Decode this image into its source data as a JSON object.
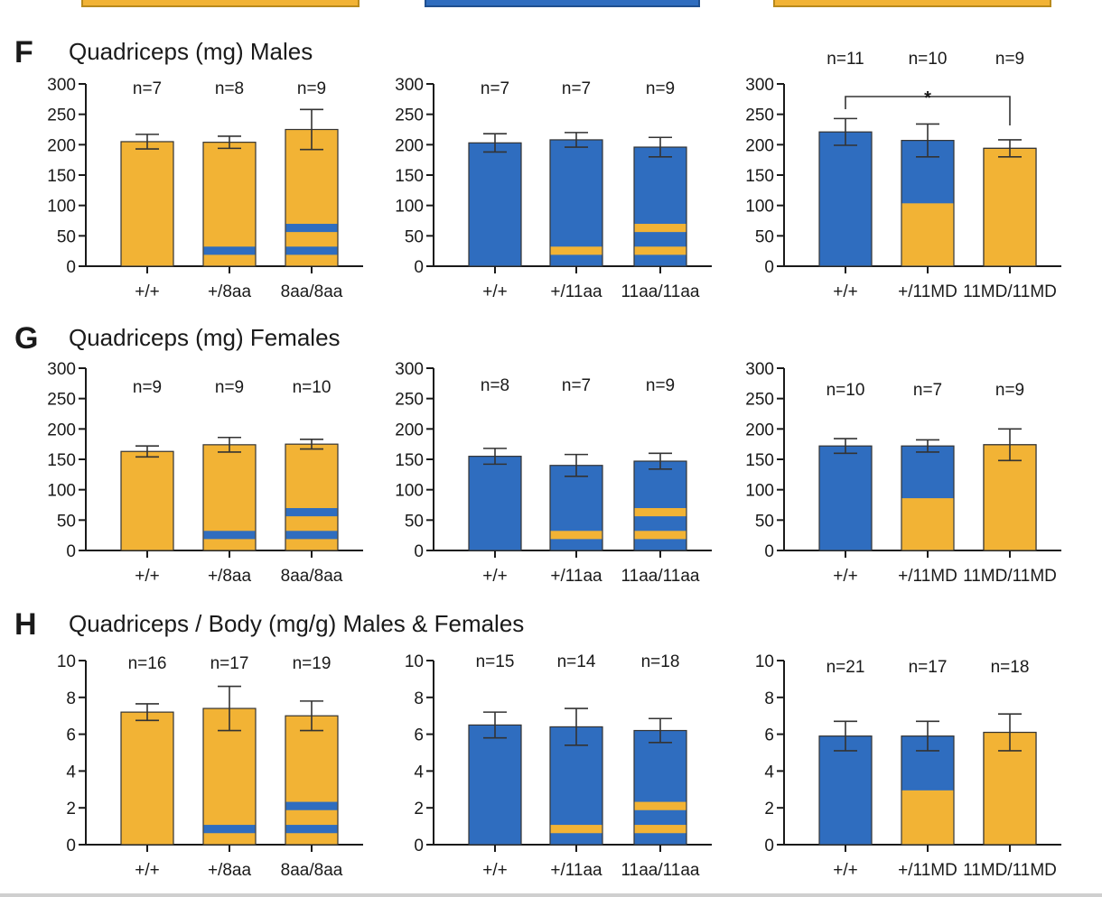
{
  "colors": {
    "orange": "#F2B335",
    "blue": "#2F6DBF",
    "axis": "#1a1a1a",
    "text": "#1a1a1a"
  },
  "chart_data": [
    {
      "panel": "F",
      "title": "Quadriceps (mg) Males",
      "type": "bar",
      "ylim": [
        0,
        300
      ],
      "ticks": [
        0,
        50,
        100,
        150,
        200,
        250,
        300
      ],
      "groups": [
        {
          "base": "orange",
          "band": "blue",
          "categories": [
            "+/+",
            "+/8aa",
            "8aa/8aa"
          ],
          "values": [
            205,
            204,
            225
          ],
          "errors": [
            12,
            10,
            33
          ],
          "n": [
            "n=7",
            "n=8",
            "n=9"
          ],
          "bands": [
            0,
            1,
            2
          ]
        },
        {
          "base": "blue",
          "band": "orange",
          "categories": [
            "+/+",
            "+/11aa",
            "11aa/11aa"
          ],
          "values": [
            203,
            208,
            196
          ],
          "errors": [
            15,
            12,
            16
          ],
          "n": [
            "n=7",
            "n=7",
            "n=9"
          ],
          "bands": [
            0,
            1,
            2
          ]
        },
        {
          "base": "blue",
          "band": "orange",
          "split": [
            0,
            0.5,
            1.0
          ],
          "categories": [
            "+/+",
            "+/11MD",
            "11MD/11MD"
          ],
          "values": [
            221,
            207,
            194
          ],
          "errors": [
            22,
            27,
            14
          ],
          "n": [
            "n=11",
            "n=10",
            "n=9"
          ],
          "sig": {
            "from": 0,
            "to": 2,
            "label": "*"
          }
        }
      ]
    },
    {
      "panel": "G",
      "title": "Quadriceps (mg) Females",
      "type": "bar",
      "ylim": [
        0,
        300
      ],
      "ticks": [
        0,
        50,
        100,
        150,
        200,
        250,
        300
      ],
      "groups": [
        {
          "base": "orange",
          "band": "blue",
          "categories": [
            "+/+",
            "+/8aa",
            "8aa/8aa"
          ],
          "values": [
            163,
            174,
            175
          ],
          "errors": [
            9,
            12,
            8
          ],
          "n": [
            "n=9",
            "n=9",
            "n=10"
          ],
          "bands": [
            0,
            1,
            2
          ]
        },
        {
          "base": "blue",
          "band": "orange",
          "categories": [
            "+/+",
            "+/11aa",
            "11aa/11aa"
          ],
          "values": [
            155,
            140,
            147
          ],
          "errors": [
            13,
            18,
            13
          ],
          "n": [
            "n=8",
            "n=7",
            "n=9"
          ],
          "bands": [
            0,
            1,
            2
          ]
        },
        {
          "base": "blue",
          "band": "orange",
          "split": [
            0,
            0.5,
            1.0
          ],
          "categories": [
            "+/+",
            "+/11MD",
            "11MD/11MD"
          ],
          "values": [
            172,
            172,
            174
          ],
          "errors": [
            12,
            10,
            26
          ],
          "n": [
            "n=10",
            "n=7",
            "n=9"
          ]
        }
      ]
    },
    {
      "panel": "H",
      "title": "Quadriceps / Body (mg/g) Males & Females",
      "type": "bar",
      "ylim": [
        0,
        10
      ],
      "ticks": [
        0,
        2,
        4,
        6,
        8,
        10
      ],
      "groups": [
        {
          "base": "orange",
          "band": "blue",
          "categories": [
            "+/+",
            "+/8aa",
            "8aa/8aa"
          ],
          "values": [
            7.2,
            7.4,
            7.0
          ],
          "errors": [
            0.45,
            1.2,
            0.8
          ],
          "n": [
            "n=16",
            "n=17",
            "n=19"
          ],
          "bands": [
            0,
            1,
            2
          ]
        },
        {
          "base": "blue",
          "band": "orange",
          "categories": [
            "+/+",
            "+/11aa",
            "11aa/11aa"
          ],
          "values": [
            6.5,
            6.4,
            6.2
          ],
          "errors": [
            0.7,
            1.0,
            0.65
          ],
          "n": [
            "n=15",
            "n=14",
            "n=18"
          ],
          "bands": [
            0,
            1,
            2
          ]
        },
        {
          "base": "blue",
          "band": "orange",
          "split": [
            0,
            0.5,
            1.0
          ],
          "categories": [
            "+/+",
            "+/11MD",
            "11MD/11MD"
          ],
          "values": [
            5.9,
            5.9,
            6.1
          ],
          "errors": [
            0.8,
            0.8,
            1.0
          ],
          "n": [
            "n=21",
            "n=17",
            "n=18"
          ]
        }
      ]
    }
  ]
}
